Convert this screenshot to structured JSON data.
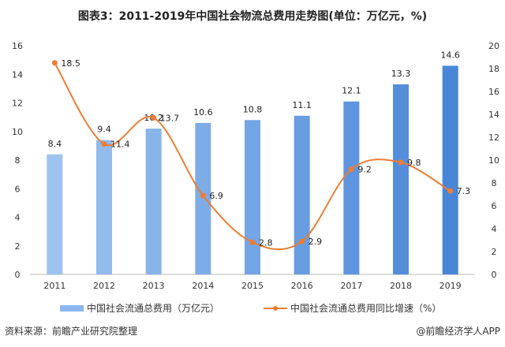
{
  "title": "图表3：2011-2019年中国社会物流总费用走势图(单位：万亿元，%)",
  "chart_data": {
    "type": "bar+line",
    "title": "图表3：2011-2019年中国社会物流总费用走势图(单位：万亿元，%)",
    "categories": [
      "2011",
      "2012",
      "2013",
      "2014",
      "2015",
      "2016",
      "2017",
      "2018",
      "2019"
    ],
    "series": [
      {
        "name": "中国社会流通总费用（万亿元）",
        "type": "bar",
        "axis": "left",
        "values": [
          8.4,
          9.4,
          10.2,
          10.6,
          10.8,
          11.1,
          12.1,
          13.3,
          14.6
        ],
        "color_start": "#9dc3f0",
        "color_end": "#4a86d8"
      },
      {
        "name": "中国社会流通总费用同比增速（%）",
        "type": "line",
        "axis": "right",
        "smooth": true,
        "values": [
          18.5,
          11.4,
          13.7,
          6.9,
          2.8,
          2.9,
          9.2,
          9.8,
          7.3
        ],
        "color": "#ed7d31"
      }
    ],
    "left_axis": {
      "min": 0,
      "max": 16,
      "step": 2,
      "ticks": [
        "0",
        "2",
        "4",
        "6",
        "8",
        "10",
        "12",
        "14",
        "16"
      ]
    },
    "right_axis": {
      "min": 0,
      "max": 20,
      "step": 2,
      "ticks": [
        "0",
        "2",
        "4",
        "6",
        "8",
        "10",
        "12",
        "14",
        "16",
        "18",
        "20"
      ]
    },
    "grid": false,
    "legend_position": "bottom"
  },
  "legend": {
    "bar_label": "中国社会流通总费用（万亿元）",
    "line_label": "中国社会流通总费用同比增速（%）"
  },
  "footer": {
    "source": "资料来源：前瞻产业研究院整理",
    "brand": "@前瞻经济学人APP"
  }
}
